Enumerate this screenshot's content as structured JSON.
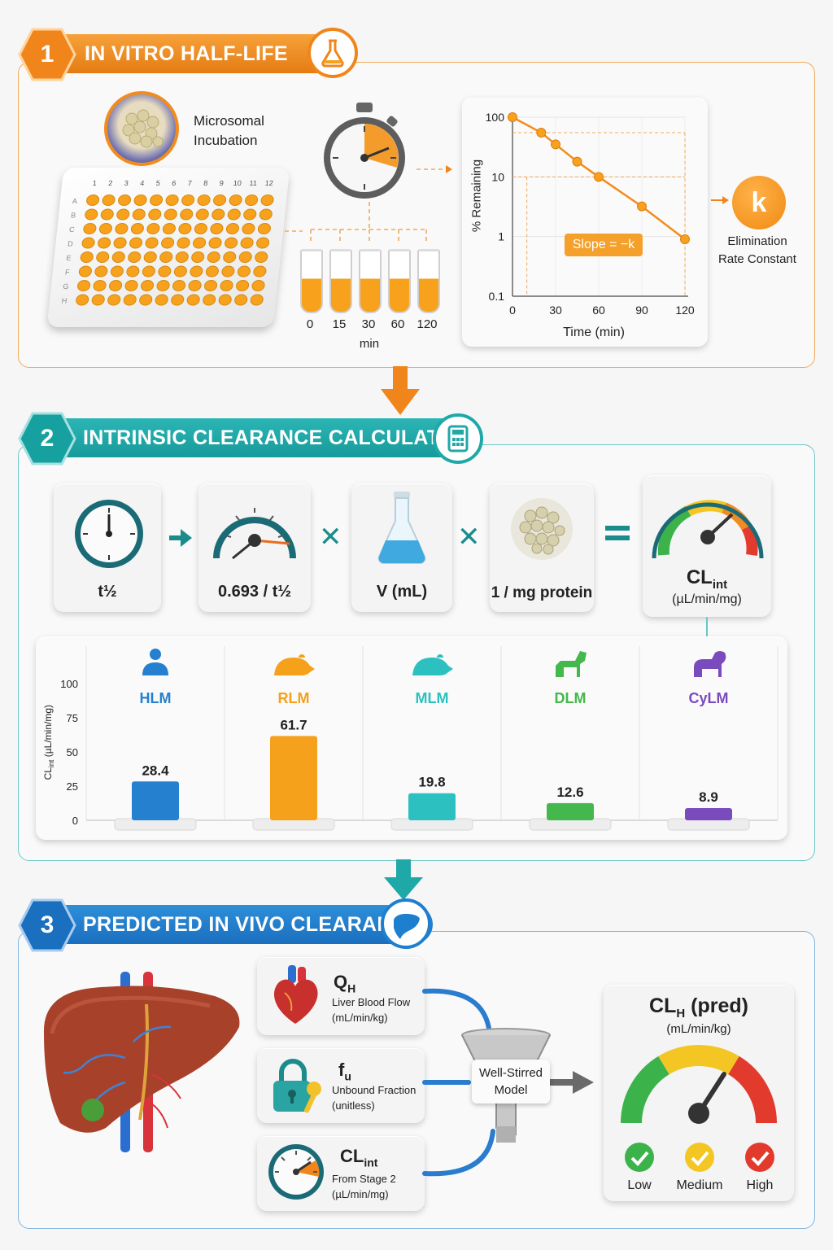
{
  "stage1": {
    "number": "1",
    "title": "IN VITRO HALF-LIFE",
    "incubation_label": [
      "Microsomal",
      "Incubation"
    ],
    "plate_cols": [
      "1",
      "2",
      "3",
      "4",
      "5",
      "6",
      "7",
      "8",
      "9",
      "10",
      "11",
      "12"
    ],
    "plate_rows": [
      "A",
      "B",
      "C",
      "D",
      "E",
      "F",
      "G",
      "H"
    ],
    "timepoints": [
      "0",
      "15",
      "30",
      "60",
      "120"
    ],
    "time_unit": "min",
    "k_symbol": "k",
    "k_label": [
      "Elimination",
      "Rate Constant"
    ],
    "colors": {
      "accent": "#f28c1e",
      "fill": "#f7a11c"
    }
  },
  "chart_data": {
    "type": "line",
    "x": [
      0,
      20,
      30,
      45,
      60,
      90,
      120
    ],
    "series": [
      {
        "values": [
          100,
          55,
          35,
          18,
          10,
          3.2,
          0.9
        ]
      }
    ],
    "xlabel": "Time (min)",
    "ylabel": "% Remaining",
    "xticks": [
      "0",
      "30",
      "60",
      "90",
      "120"
    ],
    "yticks": [
      "100",
      "10",
      "1",
      "0.1"
    ],
    "yscale": "log",
    "xlim": [
      0,
      120
    ],
    "ylim": [
      0.1,
      100
    ],
    "annotation": "Slope = −k",
    "grid": true
  },
  "stage2": {
    "number": "2",
    "title": "INTRINSIC CLEARANCE CALCULATION",
    "terms": [
      "t½",
      "0.693 / t½",
      "V (mL)",
      "1 / mg protein"
    ],
    "result": "CL",
    "result_sub": "int",
    "result_unit": "(µL/min/mg)",
    "colors": {
      "accent": "#1fa8a8"
    },
    "species_chart": {
      "type": "bar",
      "ylabel": "CL",
      "ylabel_sub": "int",
      "ylabel_unit": " (µL/min/mg)",
      "yticks": [
        "100",
        "75",
        "50",
        "25",
        "0"
      ],
      "ylim": [
        0,
        100
      ],
      "categories": [
        "HLM",
        "RLM",
        "MLM",
        "DLM",
        "CyLM"
      ],
      "values": [
        28.4,
        61.7,
        19.8,
        12.6,
        8.9
      ],
      "value_labels": [
        "28.4",
        "61.7",
        "19.8",
        "12.6",
        "8.9"
      ],
      "colors": [
        "#2580d0",
        "#f5a11b",
        "#2cc0c0",
        "#44b84c",
        "#7a4bbd"
      ]
    }
  },
  "stage3": {
    "number": "3",
    "title": "PREDICTED IN VIVO CLEARANCE",
    "colors": {
      "accent": "#1f7fcf"
    },
    "inputs": [
      {
        "symbol": "Q",
        "sub": "H",
        "line1": "Liver Blood Flow",
        "line2": "(mL/min/kg)"
      },
      {
        "symbol": "f",
        "sub": "u",
        "line1": "Unbound Fraction",
        "line2": "(unitless)"
      },
      {
        "symbol": "CL",
        "sub": "int",
        "line1": "From Stage 2",
        "line2": "(µL/min/mg)"
      }
    ],
    "model": [
      "Well-Stirred",
      "Model"
    ],
    "output_title": "CL",
    "output_sub": "H",
    "output_title_end": " (pred)",
    "output_unit": "(mL/min/kg)",
    "gauge_labels": [
      "Low",
      "Medium",
      "High"
    ],
    "gauge_colors": [
      "#3bb34a",
      "#f3c623",
      "#e23b2e"
    ]
  }
}
